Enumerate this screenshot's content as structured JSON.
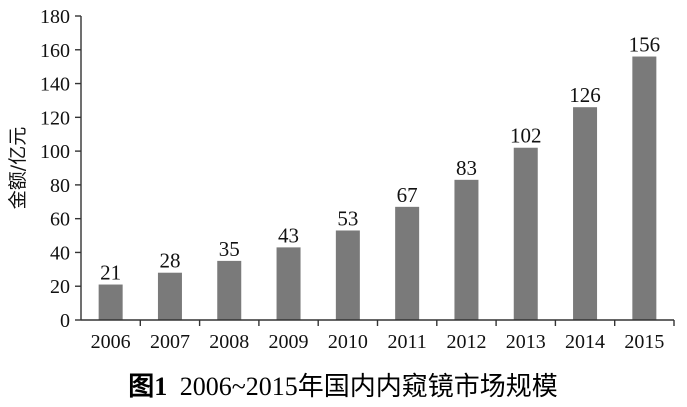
{
  "chart_data": {
    "type": "bar",
    "categories": [
      "2006",
      "2007",
      "2008",
      "2009",
      "2010",
      "2011",
      "2012",
      "2013",
      "2014",
      "2015"
    ],
    "values": [
      21,
      28,
      35,
      43,
      53,
      67,
      83,
      102,
      126,
      156
    ],
    "ylabel": "金额/亿元",
    "ylim": [
      0,
      180
    ],
    "yticks": [
      0,
      20,
      40,
      60,
      80,
      100,
      120,
      140,
      160,
      180
    ],
    "grid": false,
    "bar_color": "#7a7a7a",
    "axis_color": "#333333"
  },
  "caption": {
    "label": "图1",
    "text": "2006~2015年国内内窥镜市场规模"
  }
}
